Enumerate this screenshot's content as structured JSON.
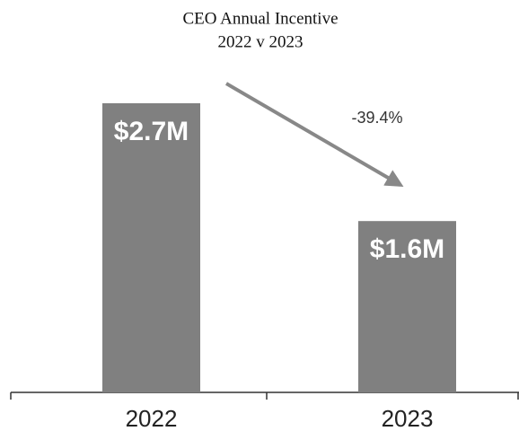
{
  "chart_data": {
    "type": "bar",
    "title": "CEO Annual Incentive",
    "subtitle": "2022 v 2023",
    "categories": [
      "2022",
      "2023"
    ],
    "values": [
      2.7,
      1.6
    ],
    "value_labels": [
      "$2.7M",
      "$1.6M"
    ],
    "color": "#808080",
    "annotation": "-39.4%"
  }
}
